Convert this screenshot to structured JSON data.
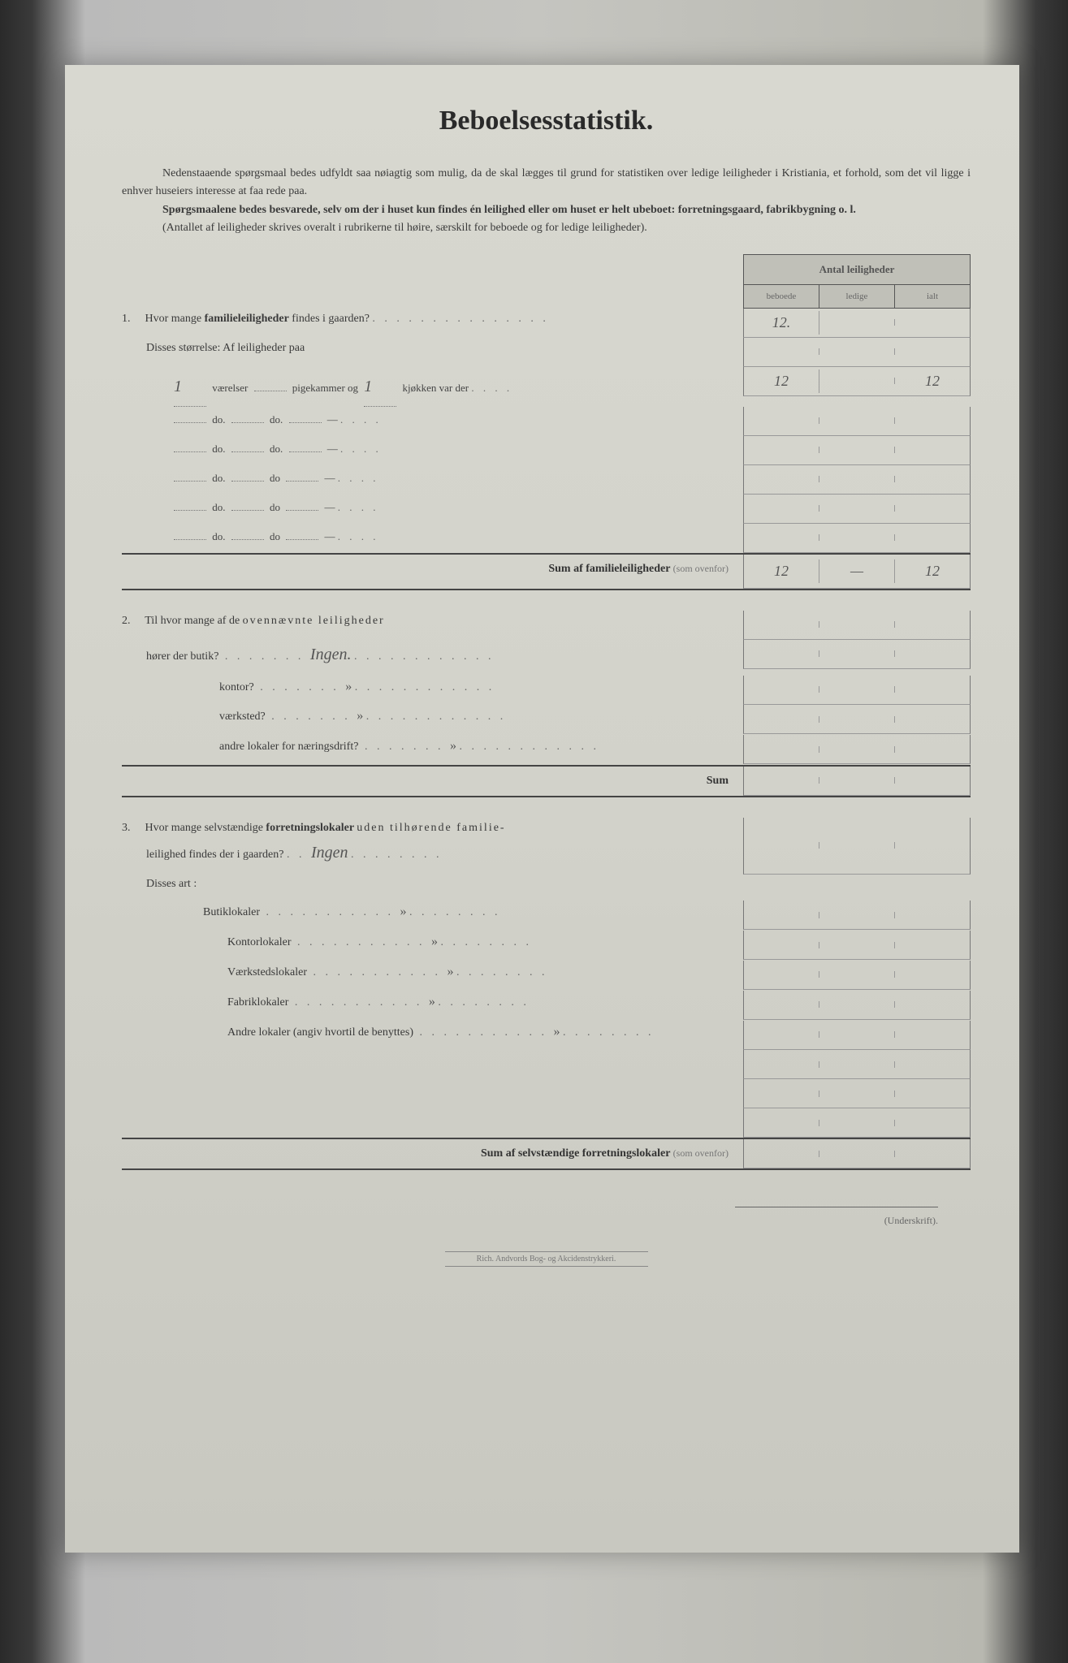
{
  "title": "Beboelsesstatistik.",
  "intro": {
    "p1a": "Nedenstaaende spørgsmaal bedes udfyldt saa nøiagtig som mulig, da de skal lægges til grund for statistiken over ledige leiligheder i Kristiania, et forhold, som det vil ligge i enhver huseiers interesse at faa rede paa.",
    "p2": "Spørgsmaalene bedes besvarede, selv om der i huset kun findes én leilighed eller om huset er helt ubeboet: forretningsgaard, fabrikbygning o. l.",
    "p3": "(Antallet af leiligheder skrives overalt i rubrikerne til høire, særskilt for beboede og for ledige leiligheder)."
  },
  "table_header": {
    "title": "Antal leiligheder",
    "cols": [
      "beboede",
      "ledige",
      "ialt"
    ]
  },
  "q1": {
    "num": "1.",
    "text_a": "Hvor mange ",
    "text_b": "familieleiligheder",
    "text_c": " findes i gaarden?",
    "value_beboede": "12.",
    "sub_title": "Disses størrelse:   Af leiligheder paa",
    "rows": [
      {
        "v": "1",
        "label1": "værelser",
        "p": "",
        "label2": "pigekammer og",
        "k": "1",
        "label3": "kjøkken var der",
        "b": "12",
        "l": "",
        "i": "12"
      },
      {
        "v": "",
        "label1": "do.",
        "p": "",
        "label2": "do.",
        "k": "",
        "label3": "—",
        "b": "",
        "l": "",
        "i": ""
      },
      {
        "v": "",
        "label1": "do.",
        "p": "",
        "label2": "do.",
        "k": "",
        "label3": "—",
        "b": "",
        "l": "",
        "i": ""
      },
      {
        "v": "",
        "label1": "do.",
        "p": "",
        "label2": "do",
        "k": "",
        "label3": "—",
        "b": "",
        "l": "",
        "i": ""
      },
      {
        "v": "",
        "label1": "do.",
        "p": "",
        "label2": "do",
        "k": "",
        "label3": "—",
        "b": "",
        "l": "",
        "i": ""
      },
      {
        "v": "",
        "label1": "do.",
        "p": "",
        "label2": "do",
        "k": "",
        "label3": "—",
        "b": "",
        "l": "",
        "i": ""
      }
    ],
    "sum_label": "Sum af familieleiligheder",
    "sum_paren": "(som ovenfor)",
    "sum_b": "12",
    "sum_l": "—",
    "sum_i": "12"
  },
  "q2": {
    "num": "2.",
    "text_a": "Til hvor mange af de ",
    "text_b": "ovennævnte leiligheder",
    "rows": [
      {
        "label": "hører der butik?",
        "hw": "Ingen."
      },
      {
        "label": "kontor?",
        "hw": "»"
      },
      {
        "label": "værksted?",
        "hw": "»"
      },
      {
        "label": "andre lokaler for næringsdrift?",
        "hw": "»"
      }
    ],
    "sum_label": "Sum"
  },
  "q3": {
    "num": "3.",
    "text_a": "Hvor mange selvstændige ",
    "text_b": "forretningslokaler ",
    "text_c": "uden tilhørende familie-",
    "text_d": "leilighed findes der i gaarden?",
    "hw_main": "Ingen",
    "sub_title": "Disses art :",
    "rows": [
      {
        "label": "Butiklokaler",
        "hw": "»"
      },
      {
        "label": "Kontorlokaler",
        "hw": "»"
      },
      {
        "label": "Værkstedslokaler",
        "hw": "»"
      },
      {
        "label": "Fabriklokaler",
        "hw": "»"
      },
      {
        "label": "Andre lokaler (angiv hvortil de benyttes)",
        "hw": "»"
      }
    ],
    "sum_label": "Sum af selvstændige forretningslokaler",
    "sum_paren": "(som ovenfor)"
  },
  "signature_label": "(Underskrift).",
  "footer": "Rich. Andvords Bog- og Akcidenstrykkeri.",
  "colors": {
    "paper": "#d2d2ca",
    "text": "#3a3a3a",
    "border": "#555",
    "handwrite": "#555"
  }
}
